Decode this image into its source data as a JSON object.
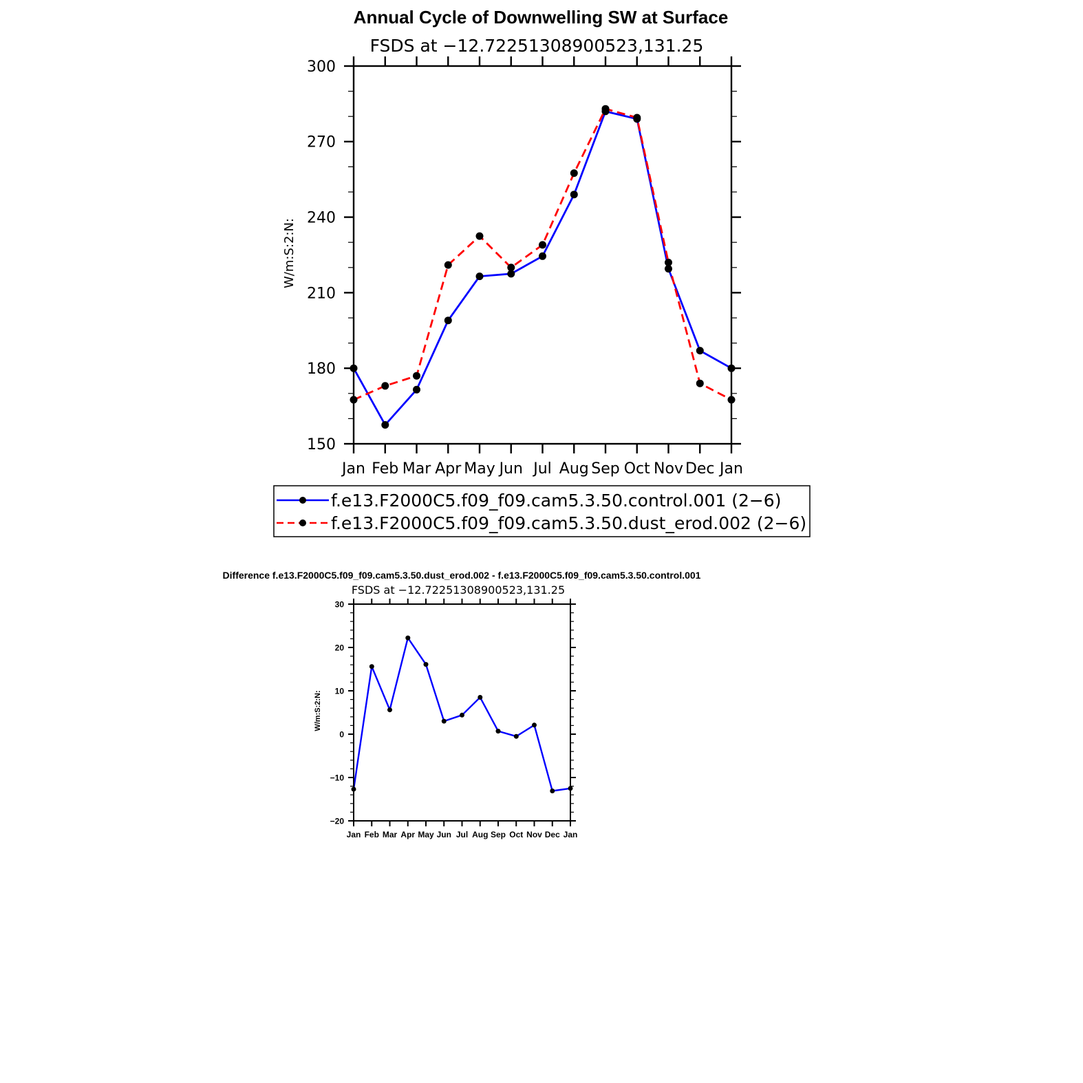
{
  "chart_data": [
    {
      "type": "line",
      "title": "Annual Cycle of Downwelling SW at Surface",
      "subtitle": "FSDS at −12.72251308900523,131.25",
      "ylabel": "W/m:S:2:N:",
      "xlabel": "",
      "ylim": [
        150,
        300
      ],
      "yticks": [
        "150",
        "180",
        "210",
        "240",
        "270",
        "300"
      ],
      "categories": [
        "Jan",
        "Feb",
        "Mar",
        "Apr",
        "May",
        "Jun",
        "Jul",
        "Aug",
        "Sep",
        "Oct",
        "Nov",
        "Dec",
        "Jan"
      ],
      "grid": false,
      "legend_position": "bottom",
      "series": [
        {
          "name": "f.e13.F2000C5.f09_f09.cam5.3.50.control.001 (2−6)",
          "color": "#0000ff",
          "dash": "solid",
          "values": [
            180.0,
            157.5,
            171.5,
            199.0,
            216.5,
            217.5,
            224.5,
            249.0,
            282.0,
            279.0,
            219.5,
            187.0,
            180.0
          ]
        },
        {
          "name": "f.e13.F2000C5.f09_f09.cam5.3.50.dust_erod.002 (2−6)",
          "color": "#ff0000",
          "dash": "dashed",
          "values": [
            167.5,
            173.0,
            177.0,
            221.0,
            232.5,
            220.0,
            229.0,
            257.5,
            283.0,
            279.5,
            222.0,
            174.0,
            167.5
          ]
        }
      ]
    },
    {
      "type": "line",
      "title": "Difference f.e13.F2000C5.f09_f09.cam5.3.50.dust_erod.002 - f.e13.F2000C5.f09_f09.cam5.3.50.control.001",
      "subtitle": "FSDS at −12.72251308900523,131.25",
      "ylabel": "W/m:S:2:N:",
      "xlabel": "",
      "ylim": [
        -20,
        30
      ],
      "yticks": [
        "−20",
        "−10",
        "0",
        "10",
        "20",
        "30"
      ],
      "categories": [
        "Jan",
        "Feb",
        "Mar",
        "Apr",
        "May",
        "Jun",
        "Jul",
        "Aug",
        "Sep",
        "Oct",
        "Nov",
        "Dec",
        "Jan"
      ],
      "grid": false,
      "series": [
        {
          "color": "#0000ff",
          "dash": "solid",
          "values": [
            -12.7,
            15.6,
            5.6,
            22.2,
            16.1,
            3.0,
            4.4,
            8.5,
            0.7,
            -0.5,
            2.1,
            -13.1,
            -12.5
          ]
        }
      ]
    }
  ]
}
